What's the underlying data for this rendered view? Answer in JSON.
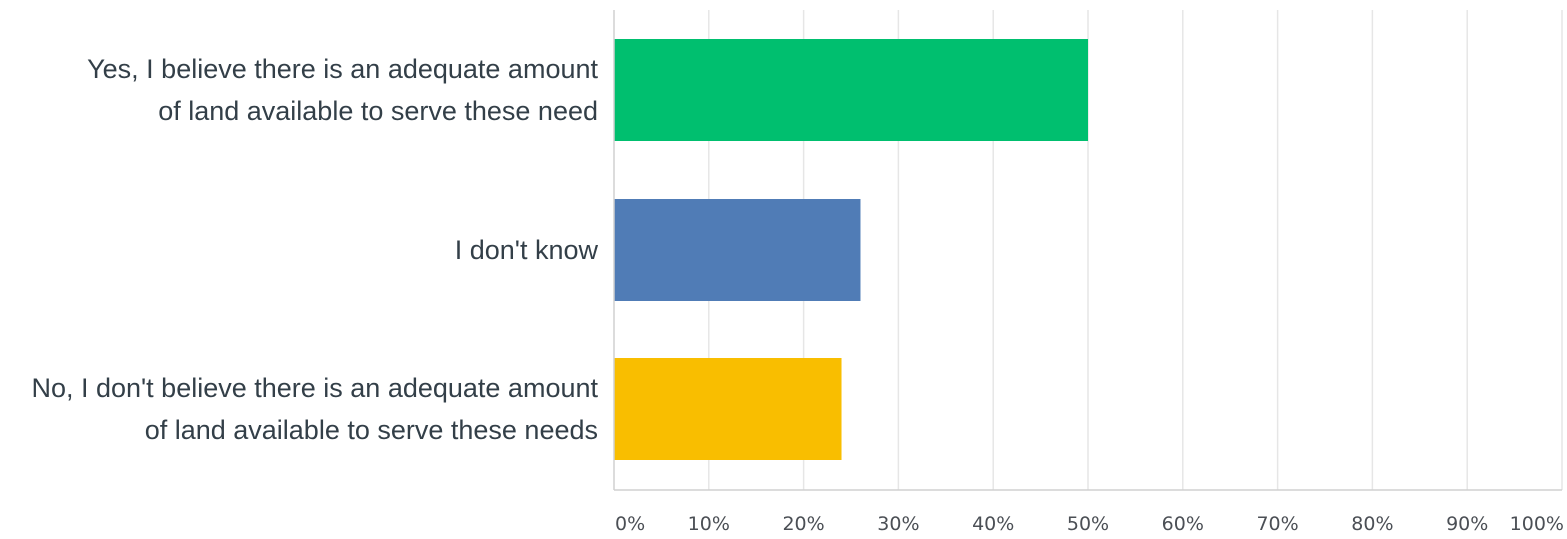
{
  "chart_data": {
    "type": "bar",
    "orientation": "horizontal",
    "categories": [
      [
        "Yes, I believe there is an adequate amount",
        "of land available to serve these need"
      ],
      [
        "I don't know"
      ],
      [
        "No, I don't believe there is an adequate amount",
        "of land available to serve these needs"
      ]
    ],
    "values": [
      50,
      26,
      24
    ],
    "colors": [
      "#00bf6f",
      "#507cb6",
      "#f9be00"
    ],
    "xlim": [
      0,
      100
    ],
    "ticks": [
      "0%",
      "10%",
      "20%",
      "30%",
      "40%",
      "50%",
      "60%",
      "70%",
      "80%",
      "90%",
      "100%"
    ],
    "grid": true,
    "legend": "none"
  }
}
